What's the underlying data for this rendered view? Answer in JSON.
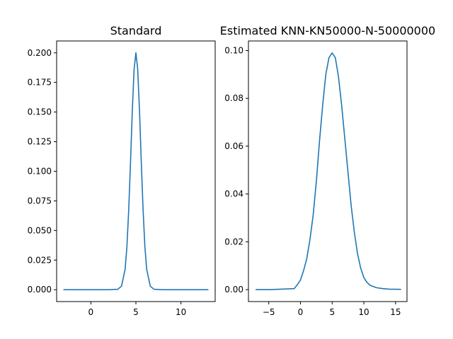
{
  "chart_data": [
    {
      "type": "line",
      "title": "Standard",
      "xlabel": "",
      "ylabel": "",
      "xlim": [
        -3.8,
        13.8
      ],
      "ylim": [
        -0.01,
        0.21
      ],
      "xticks": [
        0,
        5,
        10
      ],
      "xtick_labels": [
        "0",
        "5",
        "10"
      ],
      "yticks": [
        0.0,
        0.025,
        0.05,
        0.075,
        0.1,
        0.125,
        0.15,
        0.175,
        0.2
      ],
      "ytick_labels": [
        "0.000",
        "0.025",
        "0.050",
        "0.075",
        "0.100",
        "0.125",
        "0.150",
        "0.175",
        "0.200"
      ],
      "grid": false,
      "color": "#1f77b4",
      "series": [
        {
          "x": [
            -3.0,
            -2.0,
            -1.0,
            0.0,
            1.0,
            2.0,
            3.0,
            3.4,
            3.8,
            4.0,
            4.2,
            4.4,
            4.6,
            4.8,
            5.0,
            5.2,
            5.4,
            5.6,
            5.8,
            6.0,
            6.2,
            6.6,
            7.0,
            8.0,
            9.0,
            10.0,
            11.0,
            12.0,
            13.0
          ],
          "y": [
            0.0,
            0.0,
            0.0,
            0.0,
            0.0,
            0.0,
            0.0004,
            0.003,
            0.017,
            0.036,
            0.067,
            0.107,
            0.151,
            0.186,
            0.2,
            0.186,
            0.151,
            0.107,
            0.067,
            0.036,
            0.017,
            0.003,
            0.0004,
            0.0,
            0.0,
            0.0,
            0.0,
            0.0,
            0.0
          ]
        }
      ]
    },
    {
      "type": "line",
      "title": "Estimated KNN-KN50000-N-50000000",
      "xlabel": "",
      "ylabel": "",
      "xlim": [
        -8.2,
        16.8
      ],
      "ylim": [
        -0.005,
        0.104
      ],
      "xticks": [
        -5,
        0,
        5,
        10,
        15
      ],
      "xtick_labels": [
        "−5",
        "0",
        "5",
        "10",
        "15"
      ],
      "yticks": [
        0.0,
        0.02,
        0.04,
        0.06,
        0.08,
        0.1
      ],
      "ytick_labels": [
        "0.00",
        "0.02",
        "0.04",
        "0.06",
        "0.08",
        "0.10"
      ],
      "grid": false,
      "color": "#1f77b4",
      "series": [
        {
          "x": [
            -7.0,
            -5.0,
            -3.0,
            -1.0,
            -0.5,
            0.0,
            0.5,
            1.0,
            1.5,
            2.0,
            2.5,
            3.0,
            3.5,
            4.0,
            4.5,
            5.0,
            5.5,
            6.0,
            6.5,
            7.0,
            7.5,
            8.0,
            8.5,
            9.0,
            9.5,
            10.0,
            10.5,
            11.0,
            12.0,
            13.0,
            14.0,
            15.8
          ],
          "y": [
            0.0,
            0.0,
            0.0002,
            0.0004,
            0.002,
            0.004,
            0.008,
            0.013,
            0.021,
            0.031,
            0.045,
            0.062,
            0.077,
            0.09,
            0.097,
            0.099,
            0.097,
            0.089,
            0.077,
            0.063,
            0.049,
            0.035,
            0.024,
            0.015,
            0.009,
            0.005,
            0.003,
            0.0018,
            0.0008,
            0.0004,
            0.0002,
            0.0001
          ]
        }
      ]
    }
  ]
}
